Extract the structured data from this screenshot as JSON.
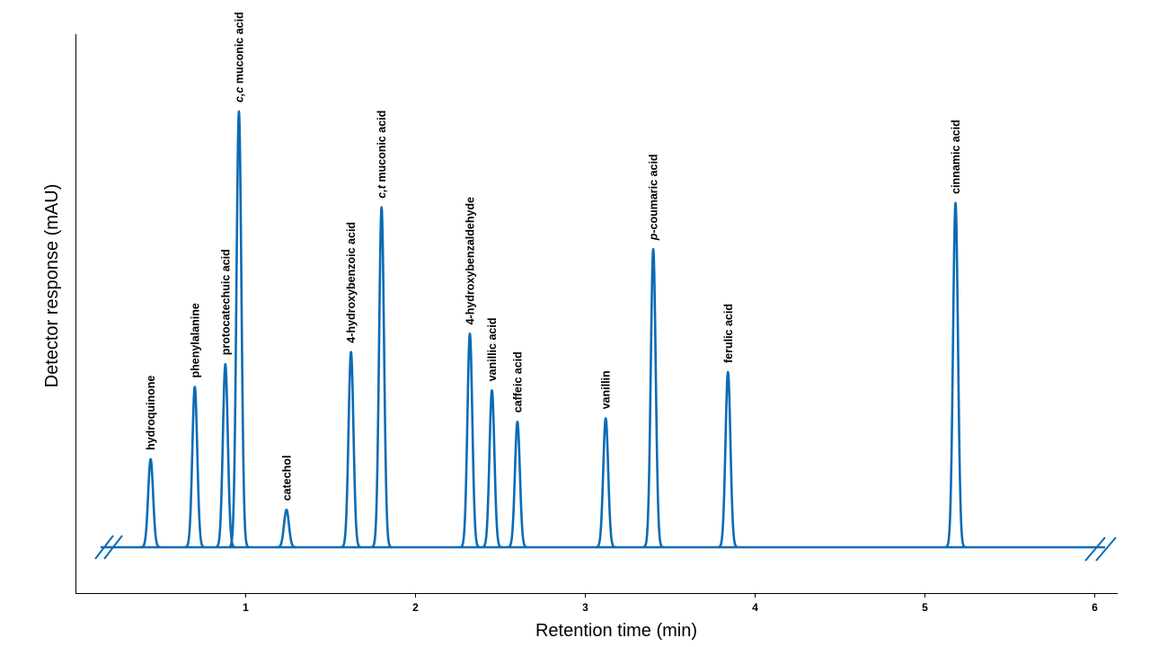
{
  "chart_data": {
    "type": "line",
    "title": "",
    "xlabel": "Retention time (min)",
    "ylabel": "Detector response (mAU)",
    "xlim": [
      0.0,
      6.15
    ],
    "ylim": [
      -13,
      100
    ],
    "x_ticks": [
      1,
      2,
      3,
      4,
      5,
      6
    ],
    "y_ticks": [],
    "grid": false,
    "legend": "none",
    "axis_break": "both ends of baseline",
    "line_color": "#0a6bb5",
    "peaks": [
      {
        "name": "hydroquinone",
        "prefix": "",
        "suffix": "hydroquinone",
        "rt": 0.44,
        "height": 20.2
      },
      {
        "name": "phenylalanine",
        "prefix": "",
        "suffix": "phenylalanine",
        "rt": 0.7,
        "height": 36.8
      },
      {
        "name": "protocatechuic acid",
        "prefix": "",
        "suffix": "protocatechuic acid",
        "rt": 0.88,
        "height": 42.0
      },
      {
        "name": "c,c muconic acid",
        "prefix": "c,c",
        "suffix": " muconic acid",
        "rt": 0.96,
        "height": 100.0
      },
      {
        "name": "catechol",
        "prefix": "",
        "suffix": "catechol",
        "rt": 1.24,
        "height": 8.6
      },
      {
        "name": "4-hydroxybenzoic acid",
        "prefix": "",
        "suffix": "4-hydroxybenzoic acid",
        "rt": 1.62,
        "height": 44.8
      },
      {
        "name": "c,t muconic acid",
        "prefix": "c,t",
        "suffix": " muconic acid",
        "rt": 1.8,
        "height": 78.0
      },
      {
        "name": "4-hydroxybenzaldehyde",
        "prefix": "",
        "suffix": "4-hydroxybenzaldehyde",
        "rt": 2.32,
        "height": 49.0
      },
      {
        "name": "vanillic acid",
        "prefix": "",
        "suffix": "vanillic acid",
        "rt": 2.45,
        "height": 36.0
      },
      {
        "name": "caffeic acid",
        "prefix": "",
        "suffix": "caffeic acid",
        "rt": 2.6,
        "height": 28.8
      },
      {
        "name": "vanillin",
        "prefix": "",
        "suffix": "vanillin",
        "rt": 3.12,
        "height": 29.6
      },
      {
        "name": "p-coumaric acid",
        "prefix": "p",
        "suffix": "-coumaric acid",
        "rt": 3.4,
        "height": 68.4
      },
      {
        "name": "ferulic acid",
        "prefix": "",
        "suffix": "ferulic acid",
        "rt": 3.84,
        "height": 40.2
      },
      {
        "name": "cinnamic acid",
        "prefix": "",
        "suffix": "cinnamic acid",
        "rt": 5.18,
        "height": 79.0
      }
    ]
  }
}
